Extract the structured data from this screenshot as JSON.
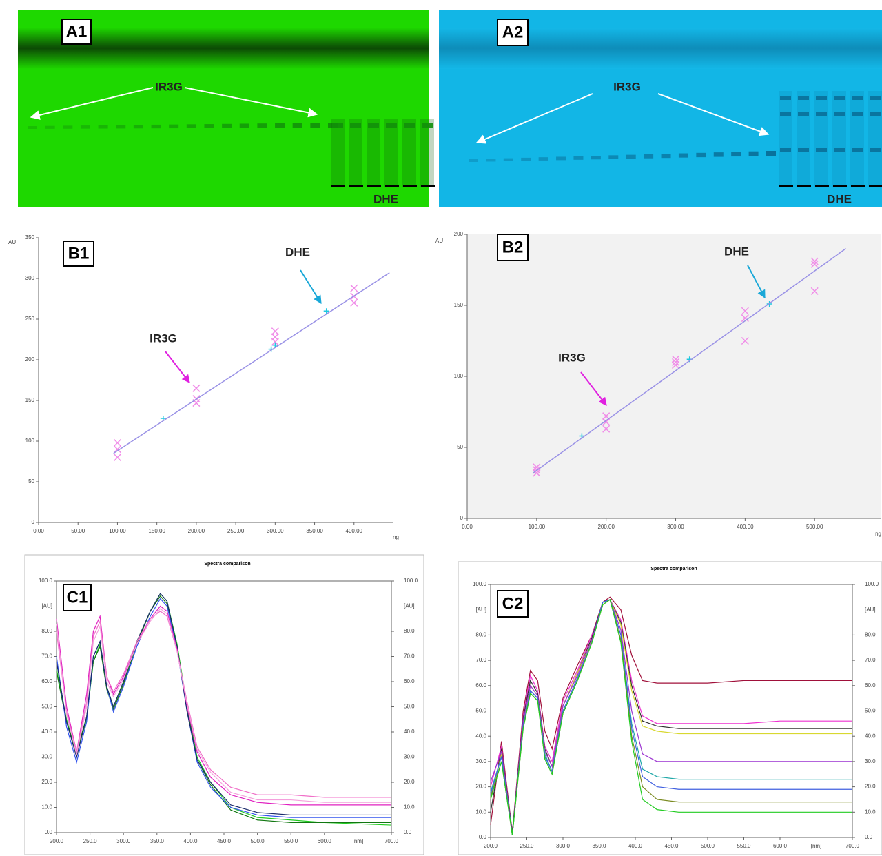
{
  "gel_images": [
    {
      "label": "A1",
      "band_label": "IR3G",
      "lane_label": "DHE"
    },
    {
      "label": "A2",
      "band_label": "IR3G",
      "lane_label": "DHE"
    }
  ],
  "chart_data": [
    {
      "type": "scatter",
      "label": "B1",
      "annotations": [
        "IR3G",
        "DHE"
      ],
      "x_label": "ng",
      "y_label": "AU",
      "xlim": [
        0,
        450
      ],
      "ylim": [
        0,
        350
      ],
      "xticks": [
        {
          "value": 0,
          "label": "0.00"
        },
        {
          "value": 50,
          "label": "50.00"
        },
        {
          "value": 100,
          "label": "100.00"
        },
        {
          "value": 150,
          "label": "150.00"
        },
        {
          "value": 200,
          "label": "200.00"
        },
        {
          "value": 250,
          "label": "250.00"
        },
        {
          "value": 300,
          "label": "300.00"
        },
        {
          "value": 350,
          "label": "350.00"
        },
        {
          "value": 400,
          "label": "400.00"
        }
      ],
      "yticks": [
        0,
        50,
        100,
        150,
        200,
        250,
        300,
        350
      ],
      "series": [
        {
          "marker": "x",
          "color": "#f08ce8",
          "x": [
            100,
            100,
            100,
            200,
            200,
            200,
            300,
            300,
            300,
            400,
            400,
            400
          ],
          "values": [
            98,
            90,
            80,
            165,
            152,
            147,
            235,
            228,
            222,
            288,
            278,
            270
          ]
        },
        {
          "marker": "+",
          "color": "#1ec8e0",
          "x": [
            158,
            295,
            300,
            365
          ],
          "values": [
            128,
            213,
            218,
            260
          ]
        },
        {
          "marker": "line",
          "color": "#9a92e6",
          "x": [
            95,
            445
          ],
          "values": [
            85,
            307
          ]
        }
      ]
    },
    {
      "type": "scatter",
      "label": "B2",
      "annotations": [
        "IR3G",
        "DHE"
      ],
      "x_label": "ng",
      "y_label": "AU",
      "xlim": [
        0,
        595
      ],
      "ylim": [
        0,
        200
      ],
      "xticks": [
        {
          "value": 0,
          "label": "0.00"
        },
        {
          "value": 100,
          "label": "100.00"
        },
        {
          "value": 200,
          "label": "200.00"
        },
        {
          "value": 300,
          "label": "300.00"
        },
        {
          "value": 400,
          "label": "400.00"
        },
        {
          "value": 500,
          "label": "500.00"
        }
      ],
      "yticks": [
        0,
        50,
        100,
        150,
        200
      ],
      "series": [
        {
          "marker": "x",
          "color": "#f08ce8",
          "x": [
            100,
            100,
            100,
            200,
            200,
            200,
            300,
            300,
            300,
            400,
            400,
            400,
            500,
            500,
            500
          ],
          "values": [
            36,
            34,
            32,
            72,
            68,
            63,
            112,
            110,
            108,
            146,
            141,
            125,
            181,
            179,
            160
          ]
        },
        {
          "marker": "+",
          "color": "#1ec8e0",
          "x": [
            165,
            320,
            435
          ],
          "values": [
            58,
            112,
            151
          ]
        },
        {
          "marker": "line",
          "color": "#9a92e6",
          "x": [
            95,
            545
          ],
          "values": [
            32,
            190
          ]
        }
      ]
    },
    {
      "type": "line",
      "label": "C1",
      "title": "Spectra comparison",
      "x_label": "[nm]",
      "y_label": "[AU]",
      "y2_label": "[AU]",
      "xlim": [
        200,
        700
      ],
      "ylim": [
        0,
        100
      ],
      "y2lim": [
        0,
        100
      ],
      "xticks": [
        {
          "value": 200,
          "label": "200.0"
        },
        {
          "value": 250,
          "label": "250.0"
        },
        {
          "value": 300,
          "label": "300.0"
        },
        {
          "value": 350,
          "label": "350.0"
        },
        {
          "value": 400,
          "label": "400.0"
        },
        {
          "value": 450,
          "label": "450.0"
        },
        {
          "value": 500,
          "label": "500.0"
        },
        {
          "value": 550,
          "label": "550.0"
        },
        {
          "value": 600,
          "label": "600.0"
        },
        {
          "value": 700,
          "label": "700.0"
        }
      ],
      "yticks": [
        {
          "value": 0,
          "label": "0.0"
        },
        {
          "value": 10,
          "label": "10.0"
        },
        {
          "value": 20,
          "label": "20.0"
        },
        {
          "value": 30,
          "label": "30.0"
        },
        {
          "value": 40,
          "label": "40.0"
        },
        {
          "value": 50,
          "label": "50.0"
        },
        {
          "value": 60,
          "label": "60.0"
        },
        {
          "value": 70,
          "label": "70.0"
        },
        {
          "value": 80,
          "label": "80.0"
        },
        {
          "value": 100,
          "label": "100.0"
        }
      ],
      "y2ticks": [
        {
          "value": 0,
          "label": "0.0"
        },
        {
          "value": 10,
          "label": "10.0"
        },
        {
          "value": 20,
          "label": "20.0"
        },
        {
          "value": 30,
          "label": "30.0"
        },
        {
          "value": 40,
          "label": "40.0"
        },
        {
          "value": 50,
          "label": "50.0"
        },
        {
          "value": 60,
          "label": "60.0"
        },
        {
          "value": 70,
          "label": "70.0"
        },
        {
          "value": 80,
          "label": "80.0"
        },
        {
          "value": 100,
          "label": "100.0"
        }
      ],
      "x": [
        200,
        215,
        230,
        245,
        255,
        265,
        275,
        285,
        300,
        320,
        340,
        355,
        365,
        380,
        395,
        410,
        430,
        460,
        500,
        550,
        600,
        700
      ],
      "series": [
        {
          "color": "#22cc22",
          "values": [
            65,
            45,
            31,
            45,
            68,
            75,
            58,
            50,
            60,
            76,
            88,
            95,
            92,
            75,
            50,
            30,
            20,
            10,
            6,
            5,
            4,
            3
          ]
        },
        {
          "color": "#117711",
          "values": [
            64,
            44,
            32,
            46,
            68,
            74,
            57,
            49,
            59,
            75,
            88,
            94,
            91,
            74,
            49,
            29,
            19,
            9,
            5,
            4,
            4,
            4
          ]
        },
        {
          "color": "#3355ee",
          "values": [
            70,
            42,
            28,
            44,
            70,
            76,
            58,
            48,
            58,
            74,
            86,
            93,
            90,
            73,
            48,
            28,
            18,
            10,
            7,
            6,
            6,
            6
          ]
        },
        {
          "color": "#1a2a6a",
          "values": [
            68,
            44,
            30,
            46,
            70,
            76,
            58,
            50,
            60,
            76,
            88,
            95,
            92,
            74,
            48,
            29,
            20,
            11,
            8,
            7,
            7,
            7
          ]
        },
        {
          "color": "#e020c0",
          "values": [
            85,
            50,
            32,
            55,
            80,
            86,
            62,
            55,
            62,
            75,
            85,
            90,
            88,
            73,
            50,
            32,
            22,
            15,
            12,
            11,
            11,
            11
          ]
        },
        {
          "color": "#f070c8",
          "values": [
            80,
            48,
            32,
            52,
            78,
            84,
            62,
            56,
            63,
            76,
            85,
            88,
            86,
            72,
            52,
            34,
            25,
            18,
            15,
            15,
            14,
            14
          ]
        },
        {
          "color": "#f4a0dc",
          "values": [
            83,
            47,
            31,
            50,
            76,
            82,
            60,
            54,
            61,
            75,
            84,
            89,
            87,
            72,
            51,
            33,
            24,
            16,
            13,
            13,
            12,
            12
          ]
        }
      ]
    },
    {
      "type": "line",
      "label": "C2",
      "title": "Spectra comparison",
      "x_label": "[nm]",
      "y_label": "[AU]",
      "y2_label": "[AU]",
      "xlim": [
        200,
        700
      ],
      "ylim": [
        0,
        100
      ],
      "y2lim": [
        0,
        100
      ],
      "xticks": [
        {
          "value": 200,
          "label": "200.0"
        },
        {
          "value": 250,
          "label": "250.0"
        },
        {
          "value": 300,
          "label": "300.0"
        },
        {
          "value": 350,
          "label": "350.0"
        },
        {
          "value": 400,
          "label": "400.0"
        },
        {
          "value": 450,
          "label": "450.0"
        },
        {
          "value": 500,
          "label": "500.0"
        },
        {
          "value": 550,
          "label": "550.0"
        },
        {
          "value": 600,
          "label": "600.0"
        },
        {
          "value": 700,
          "label": "700.0"
        }
      ],
      "yticks": [
        {
          "value": 0,
          "label": "0.0"
        },
        {
          "value": 10,
          "label": "10.0"
        },
        {
          "value": 20,
          "label": "20.0"
        },
        {
          "value": 30,
          "label": "30.0"
        },
        {
          "value": 40,
          "label": "40.0"
        },
        {
          "value": 50,
          "label": "50.0"
        },
        {
          "value": 60,
          "label": "60.0"
        },
        {
          "value": 70,
          "label": "70.0"
        },
        {
          "value": 80,
          "label": "80.0"
        },
        {
          "value": 100,
          "label": "100.0"
        }
      ],
      "y2ticks": [
        {
          "value": 0,
          "label": "0.0"
        },
        {
          "value": 10,
          "label": "10.0"
        },
        {
          "value": 20,
          "label": "20.0"
        },
        {
          "value": 30,
          "label": "30.0"
        },
        {
          "value": 40,
          "label": "40.0"
        },
        {
          "value": 50,
          "label": "50.0"
        },
        {
          "value": 60,
          "label": "60.0"
        },
        {
          "value": 70,
          "label": "70.0"
        },
        {
          "value": 80,
          "label": "80.0"
        },
        {
          "value": 100,
          "label": "100.0"
        }
      ],
      "x": [
        200,
        215,
        230,
        245,
        255,
        265,
        275,
        285,
        300,
        320,
        340,
        355,
        365,
        380,
        395,
        410,
        430,
        460,
        500,
        550,
        600,
        700
      ],
      "series": [
        {
          "color": "#a0103a",
          "values": [
            5,
            38,
            2,
            50,
            66,
            62,
            42,
            35,
            55,
            68,
            80,
            93,
            95,
            90,
            72,
            62,
            61,
            61,
            61,
            62,
            62,
            62
          ]
        },
        {
          "color": "#ee30d0",
          "values": [
            20,
            36,
            2,
            48,
            64,
            58,
            36,
            30,
            54,
            66,
            80,
            92,
            94,
            86,
            62,
            48,
            45,
            45,
            45,
            45,
            46,
            46
          ]
        },
        {
          "color": "#333333",
          "values": [
            10,
            35,
            2,
            47,
            62,
            57,
            35,
            28,
            52,
            65,
            79,
            93,
            94,
            85,
            60,
            46,
            44,
            43,
            43,
            43,
            43,
            43
          ]
        },
        {
          "color": "#d8d830",
          "values": [
            15,
            33,
            1,
            45,
            60,
            56,
            34,
            28,
            52,
            65,
            78,
            92,
            94,
            84,
            58,
            44,
            42,
            41,
            41,
            41,
            41,
            41
          ]
        },
        {
          "color": "#9a30d0",
          "values": [
            22,
            34,
            1,
            46,
            60,
            56,
            34,
            28,
            52,
            64,
            78,
            93,
            94,
            82,
            50,
            33,
            30,
            30,
            30,
            30,
            30,
            30
          ]
        },
        {
          "color": "#20a8a8",
          "values": [
            18,
            32,
            1,
            44,
            58,
            55,
            33,
            26,
            50,
            63,
            77,
            93,
            94,
            80,
            45,
            27,
            24,
            23,
            23,
            23,
            23,
            23
          ]
        },
        {
          "color": "#4060e0",
          "values": [
            17,
            32,
            1,
            44,
            58,
            55,
            32,
            26,
            50,
            63,
            77,
            93,
            94,
            80,
            43,
            24,
            20,
            19,
            19,
            19,
            19,
            19
          ]
        },
        {
          "color": "#7a8a20",
          "values": [
            16,
            30,
            1,
            43,
            57,
            54,
            31,
            25,
            49,
            62,
            77,
            92,
            94,
            78,
            40,
            20,
            15,
            14,
            14,
            14,
            14,
            14
          ]
        },
        {
          "color": "#22cc22",
          "values": [
            15,
            30,
            1,
            43,
            57,
            54,
            31,
            25,
            49,
            62,
            77,
            92,
            94,
            77,
            38,
            15,
            11,
            10,
            10,
            10,
            10,
            10
          ]
        }
      ]
    }
  ]
}
